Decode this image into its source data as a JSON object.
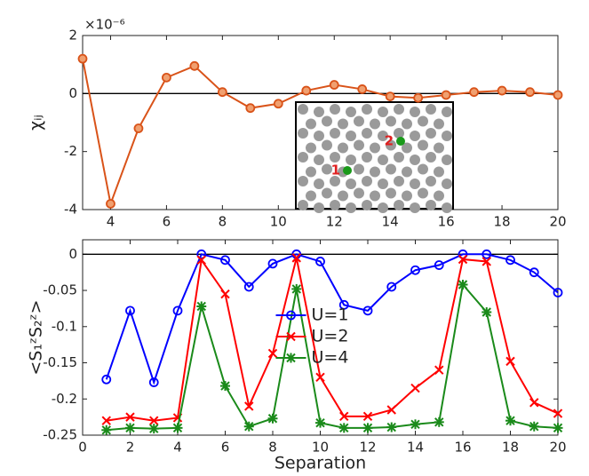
{
  "chart_data": [
    {
      "type": "line",
      "ylabel": "χᵢⱼ",
      "y_exponent": "×10⁻⁶",
      "x": [
        3,
        4,
        5,
        6,
        7,
        8,
        9,
        10,
        11,
        12,
        13,
        14,
        15,
        16,
        17,
        18,
        19,
        20
      ],
      "series": [
        {
          "name": "χij",
          "color": "#d95319",
          "marker": "circle",
          "values": [
            1.2,
            -3.8,
            -1.2,
            0.55,
            0.95,
            0.05,
            -0.5,
            -0.35,
            0.1,
            0.3,
            0.15,
            -0.1,
            -0.15,
            -0.05,
            0.05,
            0.1,
            0.05,
            -0.05
          ]
        }
      ],
      "xlim": [
        3,
        20
      ],
      "xticks": [
        4,
        6,
        8,
        10,
        12,
        14,
        16,
        18,
        20
      ],
      "ylim": [
        -4,
        2
      ],
      "yticks": [
        2,
        0,
        -2,
        -4
      ],
      "zero_line": true,
      "grid": false,
      "annotations": [
        "1",
        "2"
      ]
    },
    {
      "type": "line",
      "ylabel": "<S₁ᶻS₂ᶻ>",
      "xlabel": "Separation",
      "x": [
        1,
        2,
        3,
        4,
        5,
        6,
        7,
        8,
        9,
        10,
        11,
        12,
        13,
        14,
        15,
        16,
        17,
        18,
        19,
        20
      ],
      "series": [
        {
          "name": "U=1",
          "color": "#0000ff",
          "marker": "circle",
          "values": [
            -0.173,
            -0.078,
            -0.177,
            -0.078,
            0,
            -0.008,
            -0.045,
            -0.013,
            0,
            -0.01,
            -0.07,
            -0.078,
            -0.045,
            -0.022,
            -0.015,
            0,
            0,
            -0.008,
            -0.025,
            -0.053
          ]
        },
        {
          "name": "U=2",
          "color": "#ff0000",
          "marker": "x",
          "values": [
            -0.23,
            -0.225,
            -0.23,
            -0.226,
            -0.008,
            -0.055,
            -0.21,
            -0.137,
            -0.005,
            -0.17,
            -0.224,
            -0.224,
            -0.215,
            -0.185,
            -0.16,
            -0.007,
            -0.01,
            -0.148,
            -0.205,
            -0.22
          ]
        },
        {
          "name": "U=4",
          "color": "#1a8a1a",
          "marker": "asterisk",
          "values": [
            -0.243,
            -0.24,
            -0.241,
            -0.24,
            -0.072,
            -0.182,
            -0.238,
            -0.227,
            -0.048,
            -0.233,
            -0.24,
            -0.24,
            -0.239,
            -0.235,
            -0.232,
            -0.042,
            -0.08,
            -0.23,
            -0.238,
            -0.24
          ]
        }
      ],
      "xlim": [
        0,
        20
      ],
      "xticks": [
        0,
        2,
        4,
        6,
        8,
        10,
        12,
        14,
        16,
        18,
        20
      ],
      "ylim": [
        -0.25,
        0.02
      ],
      "yticks": [
        0,
        -0.05,
        -0.1,
        -0.15,
        -0.2,
        -0.25
      ],
      "zero_line": true,
      "grid": false,
      "legend": "center"
    }
  ]
}
